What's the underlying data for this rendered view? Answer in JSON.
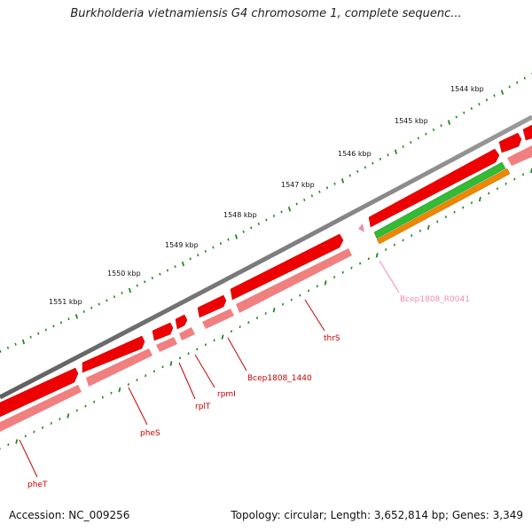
{
  "title": "Burkholderia vietnamiensis G4 chromosome 1, complete sequenc...",
  "footer": {
    "accession": "Accession: NC_009256",
    "summary": "Topology: circular; Length: 3,652,814 bp; Genes: 3,349"
  },
  "tick_labels": [
    "1544 kbp",
    "1545 kbp",
    "1546 kbp",
    "1547 kbp",
    "1548 kbp",
    "1549 kbp",
    "1550 kbp",
    "1551 kbp"
  ],
  "gene_labels": [
    {
      "name": "pheT",
      "color": "#cc0000"
    },
    {
      "name": "pheS",
      "color": "#cc0000"
    },
    {
      "name": "rplT",
      "color": "#cc0000"
    },
    {
      "name": "rpmI",
      "color": "#cc0000"
    },
    {
      "name": "Bcep1808_1440",
      "color": "#cc0000"
    },
    {
      "name": "thrS",
      "color": "#cc0000"
    },
    {
      "name": "Bcep1808_R0041",
      "color": "#f08cb4"
    }
  ],
  "colors": {
    "backbone": "#777777",
    "cds": "#ee0000",
    "cds_shadow": "#f08080",
    "rrna_green": "#33bb33",
    "rrna_orange": "#ee8800",
    "trna": "#f08cb4",
    "tick_green": "#228822"
  }
}
